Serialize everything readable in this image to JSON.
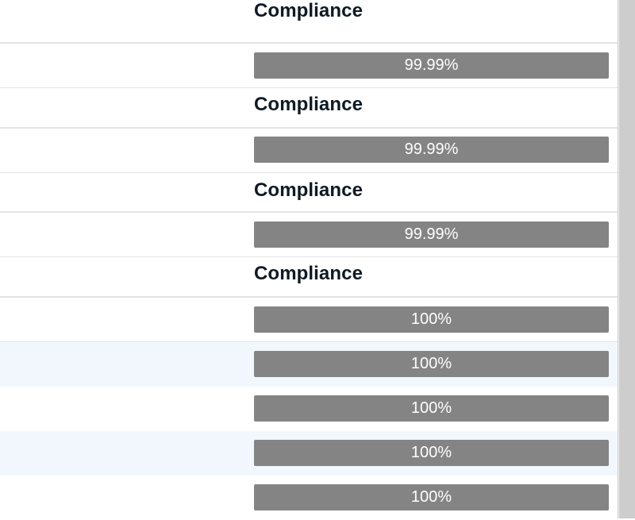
{
  "rows": [
    {
      "kind": "header",
      "label": "Compliance"
    },
    {
      "kind": "bar",
      "label": "99.99%",
      "value": 0.9999
    },
    {
      "kind": "header",
      "label": "Compliance"
    },
    {
      "kind": "bar",
      "label": "99.99%",
      "value": 0.9999
    },
    {
      "kind": "header",
      "label": "Compliance"
    },
    {
      "kind": "bar",
      "label": "99.99%",
      "value": 0.9999
    },
    {
      "kind": "header",
      "label": "Compliance"
    },
    {
      "kind": "bar",
      "label": "100%",
      "value": 1.0
    },
    {
      "kind": "bar",
      "label": "100%",
      "value": 1.0,
      "striped": true
    },
    {
      "kind": "bar",
      "label": "100%",
      "value": 1.0
    },
    {
      "kind": "bar",
      "label": "100%",
      "value": 1.0,
      "striped": true
    },
    {
      "kind": "bar",
      "label": "100%",
      "value": 1.0
    }
  ],
  "colors": {
    "bar_fill": "#848484",
    "bar_text": "#ffffff",
    "heading_text": "#0e1a24",
    "row_stripe": "#f1f7fd",
    "divider": "#e4e4e4"
  }
}
